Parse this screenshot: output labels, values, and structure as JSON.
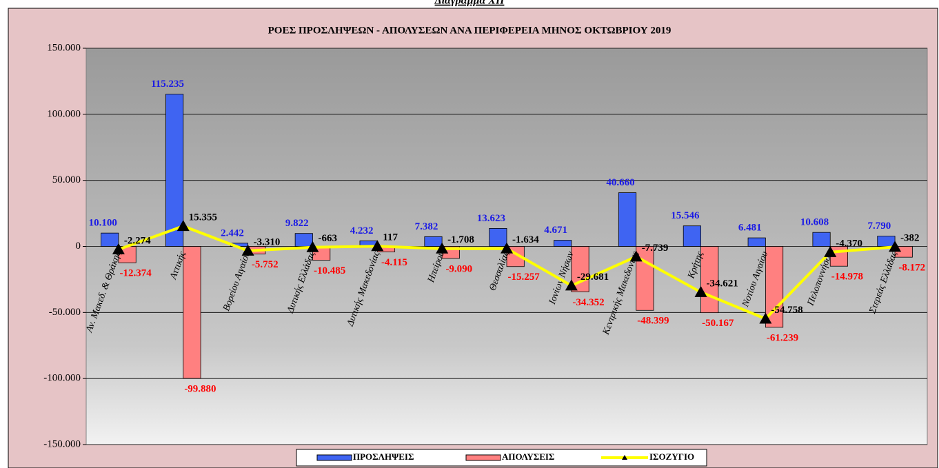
{
  "header": {
    "caption": "Διάγραμμα XII"
  },
  "chart_data": {
    "type": "bar-line",
    "title": "ΡΟΕΣ ΠΡΟΣΛΗΨΕΩΝ - ΑΠΟΛΥΣΕΩΝ ΑΝΑ ΠΕΡΙΦΕΡΕΙΑ ΜΗΝΟΣ  ΟΚΤΩΒΡΙΟΥ  2019",
    "categories": [
      "Αν. Μακεδ. & Θράκης",
      "Αττικής",
      "Βορείου Αιγαίου",
      "Δυτικής Ελλάδας",
      "Δυτικής Μακεδονίας",
      "Ηπείρου",
      "Θεσσαλίας",
      "Ιονίων Νήσων",
      "Κεντρικής Μακεδονίας",
      "Κρήτης",
      "Νοτίου Αιγαίου",
      "Πελοποννήσου",
      "Στερεάς Ελλάδας"
    ],
    "series": [
      {
        "name": "ΠΡΟΣΛΗΨΕΙΣ",
        "kind": "bar",
        "color": "#3f64f2",
        "label_color": "#1a1ae6",
        "values": [
          10100,
          115235,
          2442,
          9822,
          4232,
          7382,
          13623,
          4671,
          40660,
          15546,
          6481,
          10608,
          7790
        ],
        "value_labels": [
          "10.100",
          "115.235",
          "2.442",
          "9.822",
          "4.232",
          "7.382",
          "13.623",
          "4.671",
          "40.660",
          "15.546",
          "6.481",
          "10.608",
          "7.790"
        ]
      },
      {
        "name": "ΑΠΟΛΥΣΕΙΣ",
        "kind": "bar",
        "color": "#ff8080",
        "label_color": "#ff0000",
        "values": [
          -12374,
          -99880,
          -5752,
          -10485,
          -4115,
          -9090,
          -15257,
          -34352,
          -48399,
          -50167,
          -61239,
          -14978,
          -8172
        ],
        "value_labels": [
          "-12.374",
          "-99.880",
          "-5.752",
          "-10.485",
          "-4.115",
          "-9.090",
          "-15.257",
          "-34.352",
          "-48.399",
          "-50.167",
          "-61.239",
          "-14.978",
          "-8.172"
        ]
      },
      {
        "name": "ΙΣΟΖΥΓΙΟ",
        "kind": "line",
        "color": "#ffff00",
        "label_color": "#000000",
        "values": [
          -2274,
          15355,
          -3310,
          -663,
          117,
          -1708,
          -1634,
          -29681,
          -7739,
          -34621,
          -54758,
          -4370,
          -382
        ],
        "value_labels": [
          "-2.274",
          "15.355",
          "-3.310",
          "-663",
          "117",
          "-1.708",
          "-1.634",
          "-29.681",
          "-7.739",
          "-34.621",
          "-54.758",
          "-4.370",
          "-382"
        ]
      }
    ],
    "ylim": [
      -150000,
      150000
    ],
    "yticks": [
      {
        "value": -150000,
        "label": "-150.000"
      },
      {
        "value": -100000,
        "label": "-100.000"
      },
      {
        "value": -50000,
        "label": "-50.000"
      },
      0,
      {
        "value": 50000,
        "label": "50.000"
      },
      {
        "value": 100000,
        "label": "100.000"
      },
      {
        "value": 150000,
        "label": "150.000"
      }
    ],
    "legend": "bottom"
  }
}
